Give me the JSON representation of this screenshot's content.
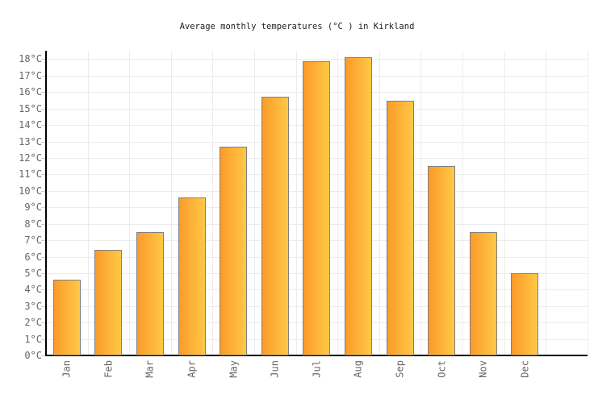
{
  "chart_data": {
    "type": "bar",
    "title": "Average monthly temperatures (°C ) in Kirkland",
    "categories": [
      "Jan",
      "Feb",
      "Mar",
      "Apr",
      "May",
      "Jun",
      "Jul",
      "Aug",
      "Sep",
      "Oct",
      "Nov",
      "Dec"
    ],
    "values": [
      4.6,
      6.4,
      7.5,
      9.6,
      12.7,
      15.7,
      17.9,
      18.1,
      15.5,
      11.5,
      7.5,
      5.0
    ],
    "xlabel": "",
    "ylabel": "",
    "ylim": [
      0,
      18.5
    ],
    "y_tick_step": 1,
    "y_tick_labels": [
      "0°C",
      "1°C",
      "2°C",
      "3°C",
      "4°C",
      "5°C",
      "6°C",
      "7°C",
      "8°C",
      "9°C",
      "10°C",
      "11°C",
      "12°C",
      "13°C",
      "14°C",
      "15°C",
      "16°C",
      "17°C",
      "18°C"
    ],
    "grid": true,
    "legend_position": "none",
    "bar_gradient_left": "#fb9b29",
    "bar_gradient_right": "#ffc847",
    "bar_border_color": "#7f7f7f"
  },
  "colors": {
    "background": "#ffffff",
    "title_text": "#222222",
    "tick_text": "#666666",
    "axis_line": "#000000",
    "gridline": "#ececec",
    "tick_mark": "#cccccc"
  }
}
